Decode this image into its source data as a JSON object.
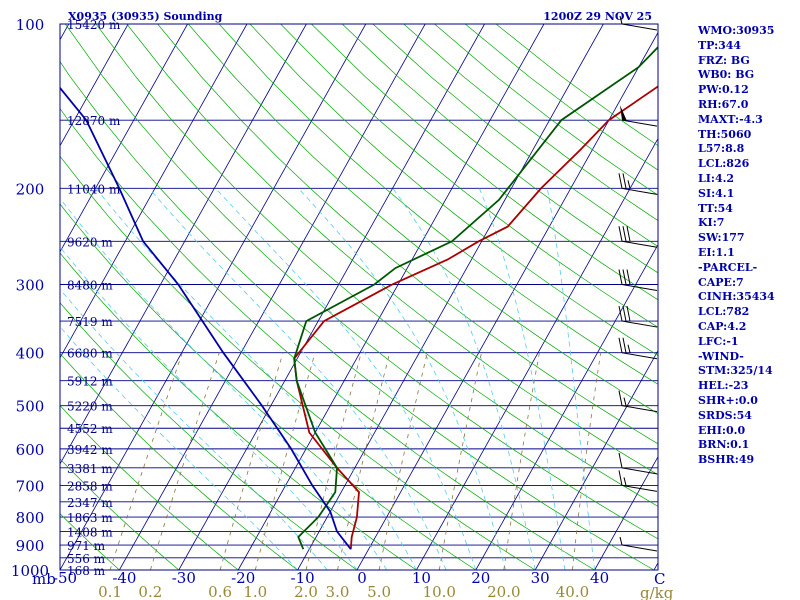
{
  "chart_data": {
    "type": "skew-t",
    "title": "X0935 (30935) Sounding",
    "time_label": "1200Z 29 NOV 25",
    "pressure_unit": "mb",
    "temp_unit": "C",
    "mixing_ratio_unit": "g/kg",
    "pressure_range": [
      1000,
      100
    ],
    "temp_axis": [
      -50,
      50
    ],
    "pressure_ticks": [
      100,
      200,
      300,
      400,
      500,
      600,
      700,
      800,
      900,
      1000
    ],
    "temp_ticks": [
      -50,
      -40,
      -30,
      -20,
      -10,
      0,
      10,
      20,
      30,
      40
    ],
    "mixing_ratio_ticks": [
      0.1,
      0.2,
      0.6,
      1.0,
      2.0,
      3.0,
      5.0,
      10.0,
      20.0,
      40.0
    ],
    "mixing_ratio_labels": [
      "0.1",
      "0.2",
      "0.6",
      "1.0",
      "2.0",
      "3.0",
      "5.0",
      "10.0",
      "20.0",
      "40.0"
    ],
    "height_labels": [
      {
        "p": 100,
        "label": "15420 m"
      },
      {
        "p": 150,
        "label": "12870 m"
      },
      {
        "p": 200,
        "label": "11040 m"
      },
      {
        "p": 250,
        "label": "9620 m"
      },
      {
        "p": 300,
        "label": "8480 m"
      },
      {
        "p": 350,
        "label": "7519 m"
      },
      {
        "p": 400,
        "label": "6680 m"
      },
      {
        "p": 450,
        "label": "5912 m"
      },
      {
        "p": 500,
        "label": "5220 m"
      },
      {
        "p": 550,
        "label": "4552 m"
      },
      {
        "p": 600,
        "label": "3942 m"
      },
      {
        "p": 650,
        "label": "3381 m"
      },
      {
        "p": 700,
        "label": "2858 m"
      },
      {
        "p": 750,
        "label": "2347 m"
      },
      {
        "p": 800,
        "label": "1863 m"
      },
      {
        "p": 850,
        "label": "1408 m"
      },
      {
        "p": 900,
        "label": "971 m"
      },
      {
        "p": 950,
        "label": "556 m"
      },
      {
        "p": 1000,
        "label": "168 m"
      }
    ],
    "series": [
      {
        "name": "temperature",
        "color": "#aa0000",
        "points": [
          [
            916,
            -3.0
          ],
          [
            870,
            -4.0
          ],
          [
            800,
            -5.0
          ],
          [
            720,
            -7.0
          ],
          [
            650,
            -13.0
          ],
          [
            560,
            -21.0
          ],
          [
            450,
            -28.0
          ],
          [
            410,
            -30.5
          ],
          [
            350,
            -29.0
          ],
          [
            300,
            -21.0
          ],
          [
            270,
            -14.0
          ],
          [
            250,
            -10.5
          ],
          [
            235,
            -7.0
          ],
          [
            200,
            -5.0
          ],
          [
            170,
            -2.0
          ],
          [
            150,
            0.0
          ],
          [
            120,
            8.0
          ],
          [
            100,
            15.0
          ]
        ]
      },
      {
        "name": "dewpoint",
        "color": "#005500",
        "points": [
          [
            916,
            -11.0
          ],
          [
            870,
            -13.0
          ],
          [
            800,
            -11.5
          ],
          [
            720,
            -11.0
          ],
          [
            650,
            -13.0
          ],
          [
            560,
            -20.0
          ],
          [
            450,
            -28.0
          ],
          [
            410,
            -30.5
          ],
          [
            350,
            -32.0
          ],
          [
            300,
            -24.0
          ],
          [
            280,
            -22.0
          ],
          [
            250,
            -15.0
          ],
          [
            210,
            -11.0
          ],
          [
            150,
            -8.0
          ],
          [
            120,
            0.0
          ],
          [
            100,
            3.0
          ]
        ]
      },
      {
        "name": "parcel",
        "color": "#0000aa",
        "points": [
          [
            916,
            -3.0
          ],
          [
            850,
            -7.0
          ],
          [
            782,
            -10.0
          ],
          [
            700,
            -15.5
          ],
          [
            600,
            -22.5
          ],
          [
            500,
            -31.5
          ],
          [
            400,
            -43.0
          ],
          [
            300,
            -57.0
          ],
          [
            250,
            -67.0
          ],
          [
            200,
            -76.0
          ],
          [
            150,
            -88.0
          ],
          [
            125,
            -98.0
          ]
        ]
      }
    ],
    "wind_barbs": [
      {
        "p": 100,
        "speed_kt": 5
      },
      {
        "p": 150,
        "speed_kt": 50
      },
      {
        "p": 200,
        "speed_kt": 25
      },
      {
        "p": 250,
        "speed_kt": 30
      },
      {
        "p": 300,
        "speed_kt": 30
      },
      {
        "p": 350,
        "speed_kt": 30
      },
      {
        "p": 400,
        "speed_kt": 25
      },
      {
        "p": 500,
        "speed_kt": 15
      },
      {
        "p": 650,
        "speed_kt": 10
      },
      {
        "p": 700,
        "speed_kt": 15
      },
      {
        "p": 900,
        "speed_kt": 5
      }
    ]
  },
  "indices": [
    "WMO:30935",
    "TP:344",
    "FRZ: BG",
    "WB0: BG",
    "PW:0.12",
    "RH:67.0",
    "MAXT:-4.3",
    "TH:5060",
    "L57:8.8",
    "LCL:826",
    "LI:4.2",
    "SI:4.1",
    "TT:54",
    "KI:7",
    "SW:177",
    "EI:1.1",
    "-PARCEL-",
    "CAPE:7",
    "CINH:35434",
    "LCL:782",
    "CAP:4.2",
    "LFC:-1",
    "-WIND-",
    "STM:325/14",
    "HEL:-23",
    "SHR+:0.0",
    "SRDS:54",
    "EHI:0.0",
    "BRN:0.1",
    "BSHR:49"
  ],
  "colors": {
    "isobar": "#00008b",
    "isotherm": "#00008b",
    "dry_adiabat": "#00aa00",
    "moist_adiabat": "#55ccee",
    "mixing_ratio": "#887744",
    "tick_label": "#0000aa",
    "mixing_label": "#998833"
  }
}
